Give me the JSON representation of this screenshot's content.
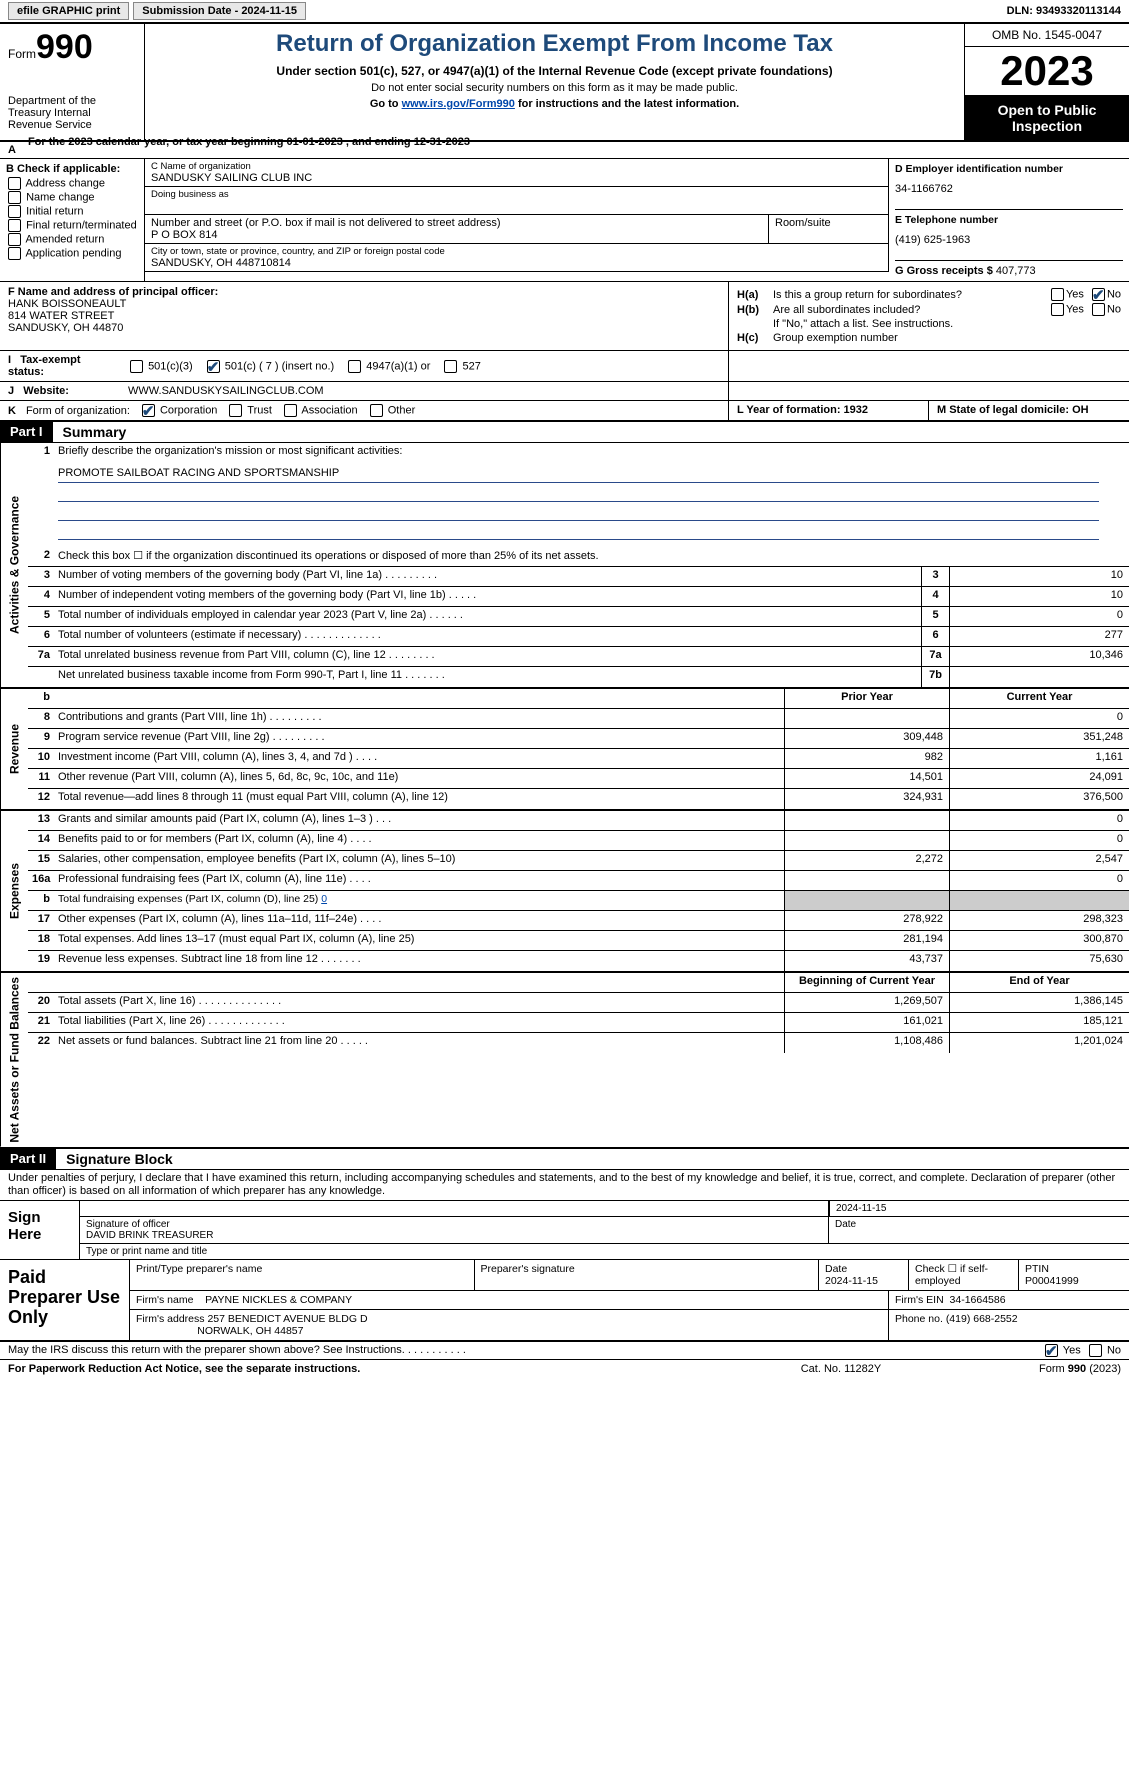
{
  "topbar": {
    "efile": "efile GRAPHIC print",
    "submission": "Submission Date - 2024-11-15",
    "dln": "DLN: 93493320113144"
  },
  "header": {
    "form_prefix": "Form",
    "form_no": "990",
    "dept": "Department of the Treasury Internal Revenue Service",
    "title": "Return of Organization Exempt From Income Tax",
    "sub1": "Under section 501(c), 527, or 4947(a)(1) of the Internal Revenue Code (except private foundations)",
    "sub2": "Do not enter social security numbers on this form as it may be made public.",
    "sub3_pre": "Go to ",
    "sub3_link": "www.irs.gov/Form990",
    "sub3_post": " for instructions and the latest information.",
    "omb": "OMB No. 1545-0047",
    "year": "2023",
    "open": "Open to Public Inspection"
  },
  "line_a": "For the 2023 calendar year, or tax year beginning 01-01-2023   , and ending 12-31-2023",
  "col_b": {
    "hdr": "B Check if applicable:",
    "items": [
      "Address change",
      "Name change",
      "Initial return",
      "Final return/terminated",
      "Amended return",
      "Application pending"
    ]
  },
  "col_c": {
    "name_lbl": "C Name of organization",
    "name": "SANDUSKY SAILING CLUB INC",
    "dba_lbl": "Doing business as",
    "addr_lbl": "Number and street (or P.O. box if mail is not delivered to street address)",
    "addr": "P O BOX 814",
    "room_lbl": "Room/suite",
    "city_lbl": "City or town, state or province, country, and ZIP or foreign postal code",
    "city": "SANDUSKY, OH  448710814"
  },
  "col_d": {
    "ein_lbl": "D Employer identification number",
    "ein": "34-1166762",
    "tel_lbl": "E Telephone number",
    "tel": "(419) 625-1963",
    "gross_lbl": "G Gross receipts $ ",
    "gross": "407,773"
  },
  "col_f": {
    "lbl": "F  Name and address of principal officer:",
    "name": "HANK BOISSONEAULT",
    "addr1": "814 WATER STREET",
    "addr2": "SANDUSKY, OH  44870"
  },
  "col_h": {
    "ha": "H(a)",
    "ha_txt": "Is this a group return for subordinates?",
    "hb": "H(b)",
    "hb_txt": "Are all subordinates included?",
    "hb_note": "If \"No,\" attach a list. See instructions.",
    "hc": "H(c)",
    "hc_txt": "Group exemption number",
    "yes": "Yes",
    "no": "No"
  },
  "row_i": {
    "lbl": "I",
    "title": "Tax-exempt status:",
    "o1": "501(c)(3)",
    "o2": "501(c) ( 7 ) (insert no.)",
    "o3": "4947(a)(1) or",
    "o4": "527"
  },
  "row_j": {
    "lbl": "J",
    "title": "Website:",
    "val": "WWW.SANDUSKYSAILINGCLUB.COM"
  },
  "row_k": {
    "lbl": "K",
    "title": "Form of organization:",
    "o1": "Corporation",
    "o2": "Trust",
    "o3": "Association",
    "o4": "Other",
    "l": "L Year of formation: 1932",
    "m": "M State of legal domicile: OH"
  },
  "part1": {
    "hdr": "Part I",
    "title": "Summary"
  },
  "mission": {
    "lbl": "1",
    "txt": "Briefly describe the organization's mission or most significant activities:",
    "val": "PROMOTE SAILBOAT RACING AND SPORTSMANSHIP"
  },
  "vlabels": {
    "gov": "Activities & Governance",
    "rev": "Revenue",
    "exp": "Expenses",
    "net": "Net Assets or Fund Balances"
  },
  "gov_lines": [
    {
      "n": "2",
      "d": "Check this box ☐  if the organization discontinued its operations or disposed of more than 25% of its net assets."
    },
    {
      "n": "3",
      "d": "Number of voting members of the governing body (Part VI, line 1a)   .   .   .   .   .   .   .   .   .",
      "b": "3",
      "v": "10"
    },
    {
      "n": "4",
      "d": "Number of independent voting members of the governing body (Part VI, line 1b)   .   .   .   .   .",
      "b": "4",
      "v": "10"
    },
    {
      "n": "5",
      "d": "Total number of individuals employed in calendar year 2023 (Part V, line 2a)   .   .   .   .   .   .",
      "b": "5",
      "v": "0"
    },
    {
      "n": "6",
      "d": "Total number of volunteers (estimate if necessary)   .   .   .   .   .   .   .   .   .   .   .   .   .",
      "b": "6",
      "v": "277"
    },
    {
      "n": "7a",
      "d": "Total unrelated business revenue from Part VIII, column (C), line 12   .   .   .   .   .   .   .   .",
      "b": "7a",
      "v": "10,346"
    },
    {
      "n": "",
      "d": "Net unrelated business taxable income from Form 990-T, Part I, line 11   .   .   .   .   .   .   .",
      "b": "7b",
      "v": ""
    }
  ],
  "yrhdr": {
    "b": "b",
    "prior": "Prior Year",
    "current": "Current Year"
  },
  "rev_lines": [
    {
      "n": "8",
      "d": "Contributions and grants (Part VIII, line 1h)   .   .   .   .   .   .   .   .   .",
      "p": "",
      "c": "0"
    },
    {
      "n": "9",
      "d": "Program service revenue (Part VIII, line 2g)   .   .   .   .   .   .   .   .   .",
      "p": "309,448",
      "c": "351,248"
    },
    {
      "n": "10",
      "d": "Investment income (Part VIII, column (A), lines 3, 4, and 7d )   .   .   .   .",
      "p": "982",
      "c": "1,161"
    },
    {
      "n": "11",
      "d": "Other revenue (Part VIII, column (A), lines 5, 6d, 8c, 9c, 10c, and 11e)",
      "p": "14,501",
      "c": "24,091"
    },
    {
      "n": "12",
      "d": "Total revenue—add lines 8 through 11 (must equal Part VIII, column (A), line 12)",
      "p": "324,931",
      "c": "376,500"
    }
  ],
  "exp_lines": [
    {
      "n": "13",
      "d": "Grants and similar amounts paid (Part IX, column (A), lines 1–3 )   .   .   .",
      "p": "",
      "c": "0"
    },
    {
      "n": "14",
      "d": "Benefits paid to or for members (Part IX, column (A), line 4)   .   .   .   .",
      "p": "",
      "c": "0"
    },
    {
      "n": "15",
      "d": "Salaries, other compensation, employee benefits (Part IX, column (A), lines 5–10)",
      "p": "2,272",
      "c": "2,547"
    },
    {
      "n": "16a",
      "d": "Professional fundraising fees (Part IX, column (A), line 11e)   .   .   .   .",
      "p": "",
      "c": "0"
    },
    {
      "n": "b",
      "d": "Total fundraising expenses (Part IX, column (D), line 25) 0",
      "p": "SHADE",
      "c": "SHADE"
    },
    {
      "n": "17",
      "d": "Other expenses (Part IX, column (A), lines 11a–11d, 11f–24e)   .   .   .   .",
      "p": "278,922",
      "c": "298,323"
    },
    {
      "n": "18",
      "d": "Total expenses. Add lines 13–17 (must equal Part IX, column (A), line 25)",
      "p": "281,194",
      "c": "300,870"
    },
    {
      "n": "19",
      "d": "Revenue less expenses. Subtract line 18 from line 12   .   .   .   .   .   .   .",
      "p": "43,737",
      "c": "75,630"
    }
  ],
  "nethdr": {
    "prior": "Beginning of Current Year",
    "current": "End of Year"
  },
  "net_lines": [
    {
      "n": "20",
      "d": "Total assets (Part X, line 16)   .   .   .   .   .   .   .   .   .   .   .   .   .   .",
      "p": "1,269,507",
      "c": "1,386,145"
    },
    {
      "n": "21",
      "d": "Total liabilities (Part X, line 26)   .   .   .   .   .   .   .   .   .   .   .   .   .",
      "p": "161,021",
      "c": "185,121"
    },
    {
      "n": "22",
      "d": "Net assets or fund balances. Subtract line 21 from line 20   .   .   .   .   .",
      "p": "1,108,486",
      "c": "1,201,024"
    }
  ],
  "part2": {
    "hdr": "Part II",
    "title": "Signature Block"
  },
  "sig_decl": "Under penalties of perjury, I declare that I have examined this return, including accompanying schedules and statements, and to the best of my knowledge and belief, it is true, correct, and complete. Declaration of preparer (other than officer) is based on all information of which preparer has any knowledge.",
  "sign": {
    "lbl": "Sign Here",
    "date": "2024-11-15",
    "sig_lbl": "Signature of officer",
    "name": "DAVID BRINK TREASURER",
    "type_lbl": "Type or print name and title",
    "date_lbl": "Date"
  },
  "prep": {
    "lbl": "Paid Preparer Use Only",
    "h1": "Print/Type preparer's name",
    "h2": "Preparer's signature",
    "h3_l": "Date",
    "h3": "2024-11-15",
    "h4": "Check ☐ if self-employed",
    "h5_l": "PTIN",
    "h5": "P00041999",
    "firm_lbl": "Firm's name",
    "firm": "PAYNE NICKLES & COMPANY",
    "ein_lbl": "Firm's EIN",
    "ein": "34-1664586",
    "addr_lbl": "Firm's address",
    "addr1": "257 BENEDICT AVENUE BLDG D",
    "addr2": "NORWALK, OH  44857",
    "phone_lbl": "Phone no.",
    "phone": "(419) 668-2552"
  },
  "discuss": {
    "txt": "May the IRS discuss this return with the preparer shown above? See Instructions.   .   .   .   .   .   .   .   .   .   .",
    "yes": "Yes",
    "no": "No"
  },
  "footer": {
    "f1": "For Paperwork Reduction Act Notice, see the separate instructions.",
    "f2": "Cat. No. 11282Y",
    "f3_a": "Form ",
    "f3_b": "990",
    "f3_c": " (2023)"
  }
}
